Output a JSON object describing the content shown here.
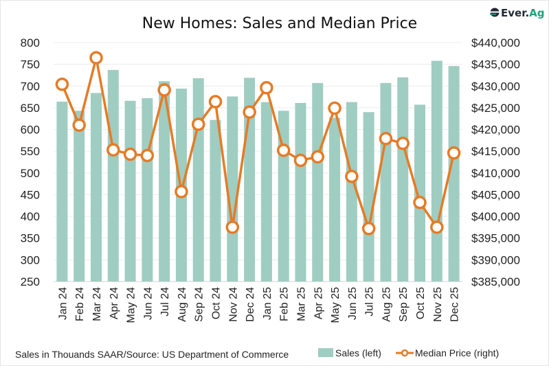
{
  "logo": {
    "text_a": "Ever.",
    "text_b": "Ag",
    "color_dark": "#1f2a36",
    "color_green": "#1aa37a"
  },
  "footer": {
    "source": "Sales in Thouands SAAR/Source: US Department of Commerce"
  },
  "chart_data": {
    "type": "bar+line",
    "title": "New Homes: Sales and Median Price",
    "categories": [
      "Jan 24",
      "Feb 24",
      "Mar 24",
      "Apr 24",
      "May 24",
      "Jun 24",
      "Jul 24",
      "Aug 24",
      "Sep 24",
      "Oct 24",
      "Nov 24",
      "Dec 24",
      "Jan 25",
      "Feb 25",
      "Mar 25",
      "Apr 25",
      "May 25",
      "Jun 25",
      "Jul 25",
      "Aug 25",
      "Sep 25",
      "Oct 25",
      "Nov 25",
      "Dec 25"
    ],
    "series": [
      {
        "name": "Sales (left)",
        "type": "bar",
        "axis": "left",
        "color": "#9fcdc1",
        "values": [
          664,
          643,
          684,
          737,
          666,
          672,
          711,
          694,
          718,
          622,
          676,
          719,
          663,
          643,
          661,
          707,
          627,
          663,
          640,
          707,
          720,
          657,
          758,
          746
        ]
      },
      {
        "name": "Median Price (right)",
        "type": "line",
        "axis": "right",
        "color": "#e57b26",
        "values": [
          430400,
          421000,
          436500,
          415300,
          414300,
          414000,
          429100,
          405700,
          421200,
          426400,
          397500,
          424000,
          429600,
          415200,
          412900,
          413700,
          424900,
          409200,
          397200,
          417900,
          416800,
          403200,
          397500,
          414600
        ]
      }
    ],
    "left_axis": {
      "range": [
        250,
        800
      ],
      "ticks": [
        "250",
        "300",
        "350",
        "400",
        "450",
        "500",
        "550",
        "600",
        "650",
        "700",
        "750",
        "800"
      ]
    },
    "right_axis": {
      "range": [
        385000,
        440000
      ],
      "ticks": [
        "$385,000",
        "$390,000",
        "$395,000",
        "$400,000",
        "$405,000",
        "$410,000",
        "$415,000",
        "$420,000",
        "$425,000",
        "$430,000",
        "$435,000",
        "$440,000"
      ]
    },
    "grid": true,
    "legend": "bottom-right"
  }
}
